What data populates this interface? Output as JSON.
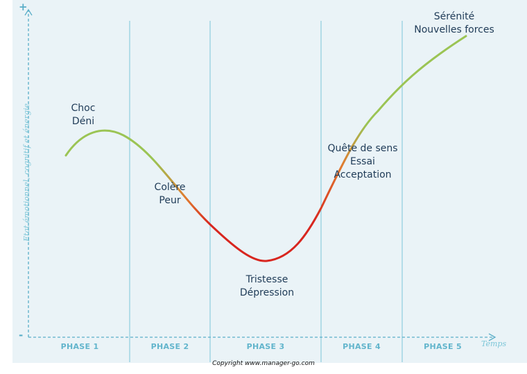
{
  "axes": {
    "y_top_sign": "+",
    "y_bottom_sign": "-",
    "y_label": "Etat émotionnel, cognitif et énergie",
    "x_label": "Temps",
    "color": "#5aaec8"
  },
  "phases": [
    {
      "label": "PHASE 1"
    },
    {
      "label": "PHASE 2"
    },
    {
      "label": "PHASE 3"
    },
    {
      "label": "PHASE 4"
    },
    {
      "label": "PHASE 5"
    }
  ],
  "stages": {
    "s1": {
      "line1": "Choc",
      "line2": "Déni"
    },
    "s2": {
      "line1": "Colère",
      "line2": "Peur"
    },
    "s3": {
      "line1": "Tristesse",
      "line2": "Dépression"
    },
    "s4": {
      "line1": "Quête de sens",
      "line2": "Essai",
      "line3": "Acceptation"
    },
    "s5": {
      "line1": "Sérénité",
      "line2": "Nouvelles forces"
    }
  },
  "curve": {
    "colors": {
      "green": "#9bc454",
      "orange": "#e07b2f",
      "red": "#d8261f"
    }
  },
  "copyright": "Copyright www.manager-go.com",
  "background": "#eaf3f7"
}
